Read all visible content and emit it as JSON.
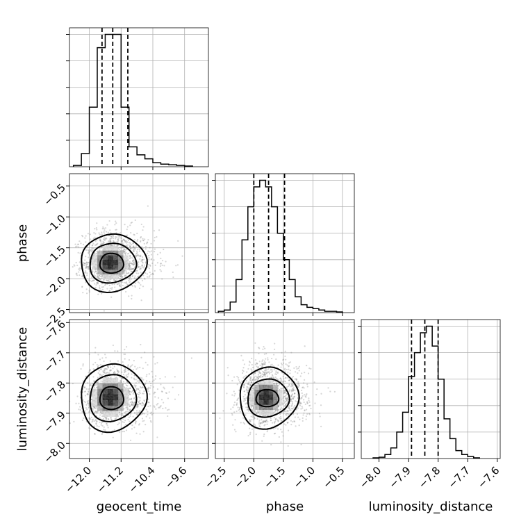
{
  "chart_data": [
    {
      "type": "histogram",
      "panel": "geocent_time-marginal",
      "param": "geocent_time",
      "bin_edges": [
        -12.4,
        -12.2,
        -12.0,
        -11.8,
        -11.6,
        -11.4,
        -11.2,
        -11.0,
        -10.8,
        -10.6,
        -10.4,
        -10.2,
        -10.0,
        -9.8,
        -9.6,
        -9.4
      ],
      "counts": [
        1,
        10,
        45,
        90,
        100,
        100,
        45,
        15,
        9,
        6,
        3,
        2,
        1.5,
        1,
        0.5
      ],
      "quantiles": [
        -11.68,
        -11.41,
        -11.03
      ],
      "xlim": [
        -12.5,
        -9.0
      ],
      "ylim": [
        0,
        105
      ],
      "yticks_count": 5,
      "x_tick_labels": [
        "",
        "",
        "",
        ""
      ]
    },
    {
      "type": "scatter-contour",
      "panel": "phase-vs-geocent_time",
      "x_param": "geocent_time",
      "y_param": "phase",
      "center": [
        -11.45,
        -1.75
      ],
      "sigma": [
        0.35,
        0.2
      ],
      "contour_rx": [
        0.28,
        0.55,
        0.78
      ],
      "contour_ry": [
        0.17,
        0.33,
        0.46
      ],
      "xlim": [
        -12.5,
        -9.0
      ],
      "ylim": [
        -2.55,
        -0.3
      ],
      "ylabel": "phase",
      "y_ticks": [
        -2.5,
        -2.0,
        -1.5,
        -1.0,
        -0.5
      ],
      "y_tick_labels": [
        "−2.5",
        "−2.0",
        "−1.5",
        "−1.0",
        "−0.5"
      ]
    },
    {
      "type": "histogram",
      "panel": "phase-marginal",
      "param": "phase",
      "bin_edges": [
        -2.6,
        -2.5,
        -2.4,
        -2.3,
        -2.2,
        -2.1,
        -2.0,
        -1.9,
        -1.8,
        -1.7,
        -1.6,
        -1.5,
        -1.4,
        -1.3,
        -1.2,
        -1.1,
        -1.0,
        -0.9,
        -0.8,
        -0.7,
        -0.6,
        -0.5
      ],
      "counts": [
        1,
        2,
        8,
        25,
        55,
        80,
        95,
        100,
        95,
        80,
        60,
        40,
        25,
        12,
        6,
        4,
        3,
        2,
        1,
        1,
        0.5
      ],
      "quantiles": [
        -2.0,
        -1.75,
        -1.48
      ],
      "xlim": [
        -2.65,
        -0.3
      ],
      "ylim": [
        0,
        105
      ],
      "yticks_count": 5,
      "x_tick_labels": [
        "",
        "",
        "",
        "",
        ""
      ]
    },
    {
      "type": "scatter-contour",
      "panel": "luminosity_distance-vs-geocent_time",
      "x_param": "geocent_time",
      "y_param": "luminosity_distance",
      "center": [
        -11.45,
        -7.85
      ],
      "sigma": [
        0.35,
        0.045
      ],
      "contour_rx": [
        0.28,
        0.55,
        0.78
      ],
      "contour_ry": [
        0.04,
        0.08,
        0.11
      ],
      "xlim": [
        -12.5,
        -9.0
      ],
      "ylim": [
        -8.05,
        -7.59
      ],
      "xlabel": "geocent_time",
      "ylabel": "luminosity_distance",
      "x_ticks": [
        -12.0,
        -11.2,
        -10.4,
        -9.6
      ],
      "x_tick_labels": [
        "−12.0",
        "−11.2",
        "−10.4",
        "−9.6"
      ],
      "y_ticks": [
        -8.0,
        -7.9,
        -7.8,
        -7.7,
        -7.6
      ],
      "y_tick_labels": [
        "−8.0",
        "−7.9",
        "−7.8",
        "−7.7",
        "−7.6"
      ]
    },
    {
      "type": "scatter-contour",
      "panel": "luminosity_distance-vs-phase",
      "x_param": "phase",
      "y_param": "luminosity_distance",
      "center": [
        -1.78,
        -7.85
      ],
      "sigma": [
        0.22,
        0.045
      ],
      "contour_rx": [
        0.18,
        0.33,
        0.47
      ],
      "contour_ry": [
        0.03,
        0.065,
        0.1
      ],
      "xlim": [
        -2.65,
        -0.3
      ],
      "ylim": [
        -8.05,
        -7.59
      ],
      "xlabel": "phase",
      "x_ticks": [
        -2.5,
        -2.0,
        -1.5,
        -1.0,
        -0.5
      ],
      "x_tick_labels": [
        "−2.5",
        "−2.0",
        "−1.5",
        "−1.0",
        "−0.5"
      ]
    },
    {
      "type": "histogram",
      "panel": "luminosity_distance-marginal",
      "param": "luminosity_distance",
      "bin_edges": [
        -8.02,
        -8.0,
        -7.98,
        -7.96,
        -7.94,
        -7.92,
        -7.9,
        -7.88,
        -7.86,
        -7.84,
        -7.82,
        -7.8,
        -7.78,
        -7.76,
        -7.74,
        -7.72,
        -7.7,
        -7.68,
        -7.66
      ],
      "counts": [
        0.5,
        1,
        3,
        8,
        20,
        35,
        62,
        80,
        95,
        100,
        85,
        60,
        30,
        15,
        6,
        3,
        1.5,
        0.5
      ],
      "quantiles": [
        -7.89,
        -7.845,
        -7.8
      ],
      "xlim": [
        -8.06,
        -7.59
      ],
      "ylim": [
        0,
        105
      ],
      "yticks_count": 5,
      "xlabel": "luminosity_distance",
      "x_ticks": [
        -8.0,
        -7.9,
        -7.8,
        -7.7,
        -7.6
      ],
      "x_tick_labels": [
        "−8.0",
        "−7.9",
        "−7.8",
        "−7.7",
        "−7.6"
      ]
    }
  ]
}
